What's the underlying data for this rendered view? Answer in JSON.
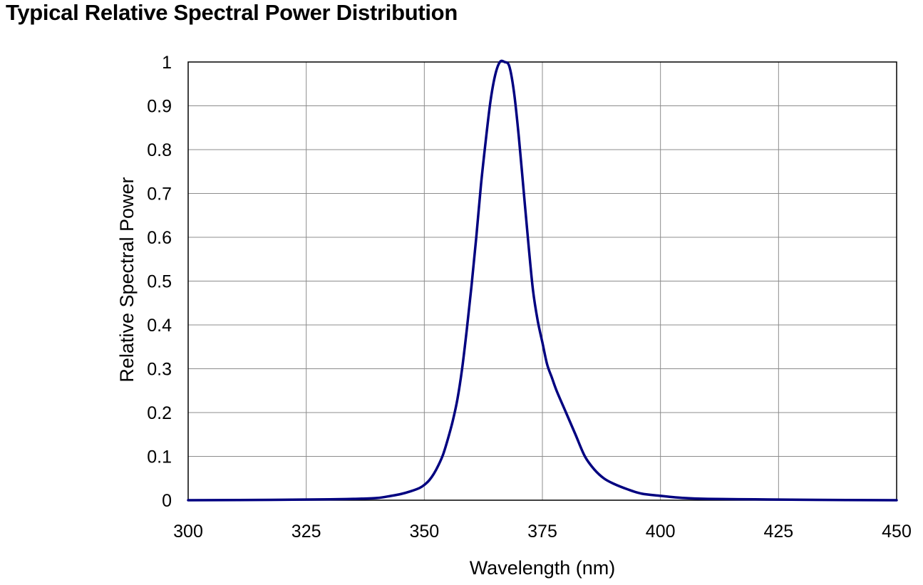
{
  "chart_data": {
    "type": "line",
    "title": "Typical Relative Spectral Power Distribution",
    "xlabel": "Wavelength (nm)",
    "ylabel": "Relative Spectral Power",
    "xlim": [
      300,
      450
    ],
    "ylim": [
      0,
      1
    ],
    "x_ticks": [
      300,
      325,
      350,
      375,
      400,
      425,
      450
    ],
    "y_ticks": [
      0,
      0.1,
      0.2,
      0.3,
      0.4,
      0.5,
      0.6,
      0.7,
      0.8,
      0.9,
      1
    ],
    "y_tick_labels": [
      "0",
      "0.1",
      "0.2",
      "0.3",
      "0.4",
      "0.5",
      "0.6",
      "0.7",
      "0.8",
      "0.9",
      "1"
    ],
    "grid": true,
    "line_color": "#000080",
    "series": [
      {
        "x": [
          300,
          320,
          330,
          335,
          340,
          343,
          345,
          347,
          349,
          350,
          351,
          352,
          353,
          354,
          355,
          356,
          357,
          358,
          359,
          360,
          361,
          362,
          363,
          364,
          365,
          366,
          367,
          368,
          369,
          370,
          371,
          372,
          373,
          374,
          375,
          376,
          377,
          378,
          380,
          382,
          384,
          386,
          388,
          390,
          393,
          396,
          400,
          405,
          410,
          420,
          430,
          450
        ],
        "y": [
          0,
          0.001,
          0.002,
          0.003,
          0.005,
          0.01,
          0.014,
          0.02,
          0.028,
          0.035,
          0.045,
          0.06,
          0.08,
          0.105,
          0.14,
          0.18,
          0.23,
          0.3,
          0.39,
          0.49,
          0.6,
          0.72,
          0.82,
          0.91,
          0.97,
          1.0,
          1.0,
          0.99,
          0.93,
          0.83,
          0.71,
          0.59,
          0.48,
          0.41,
          0.36,
          0.31,
          0.28,
          0.25,
          0.2,
          0.15,
          0.1,
          0.07,
          0.05,
          0.038,
          0.025,
          0.015,
          0.01,
          0.005,
          0.003,
          0.002,
          0.001,
          0
        ]
      }
    ]
  }
}
